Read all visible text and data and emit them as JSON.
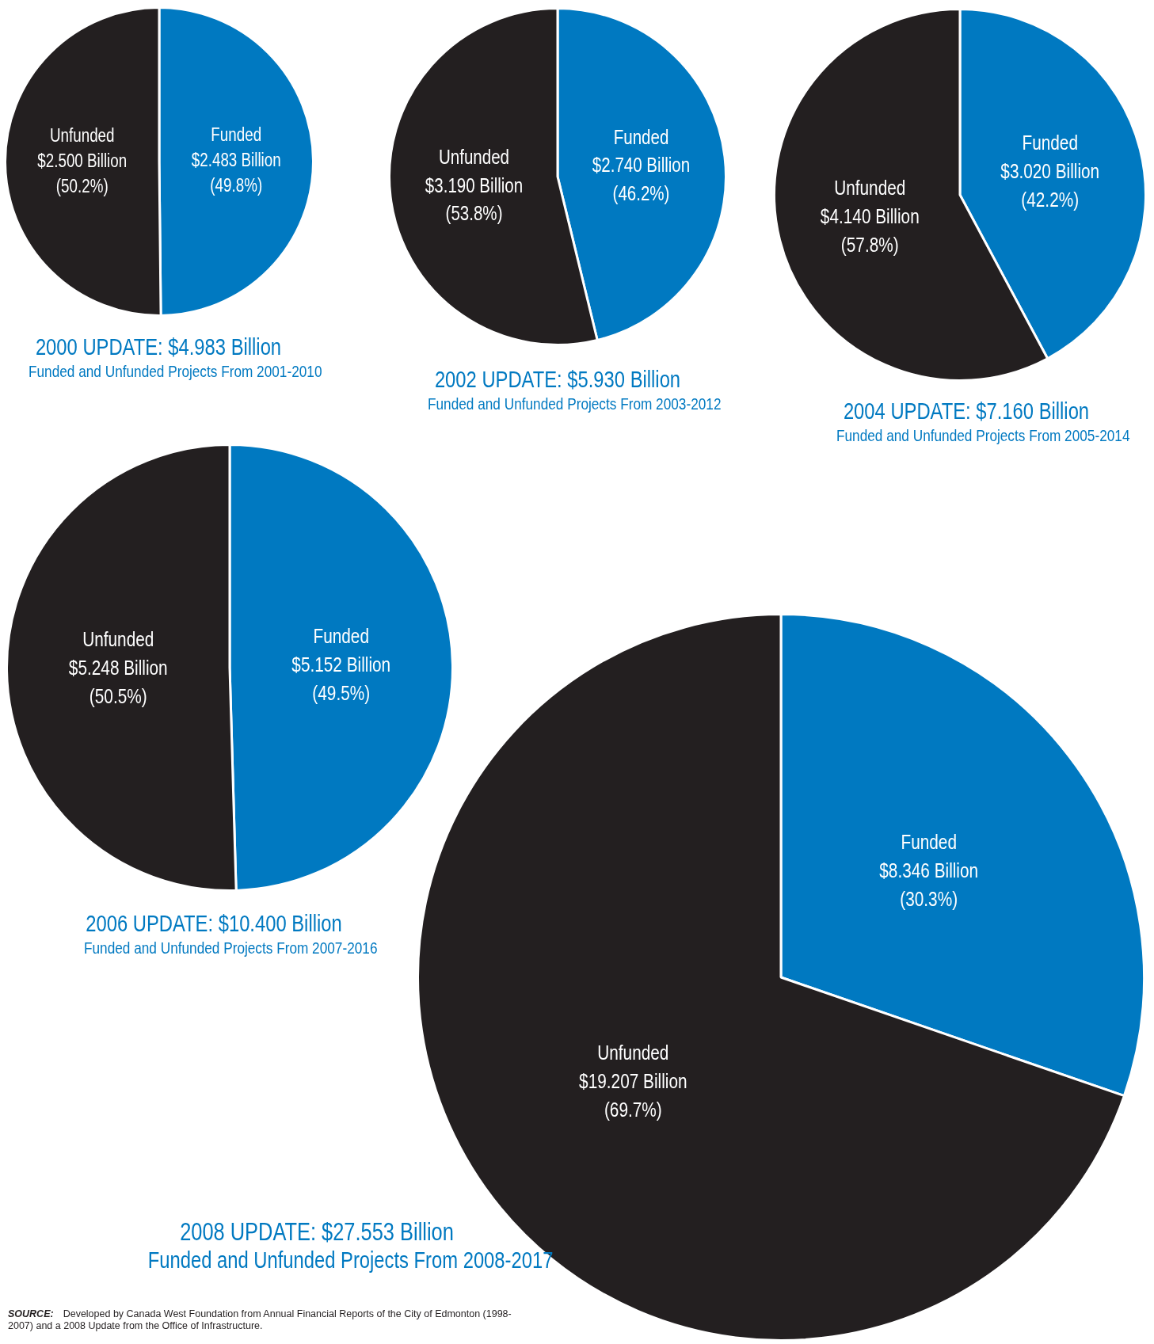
{
  "chart_data": [
    {
      "type": "pie",
      "title": "2000 UPDATE:  $4.983 Billion",
      "subtitle": "Funded and Unfunded Projects From 2001-2010",
      "categories": [
        "Funded",
        "Unfunded"
      ],
      "values": [
        2.483,
        2.5
      ],
      "colors": [
        "#0079c1",
        "#231f20"
      ],
      "value_labels": [
        "$2.483 Billion (49.8%)",
        "$2.500 Billion (50.2%)"
      ],
      "legend": false
    },
    {
      "type": "pie",
      "title": "2002 UPDATE:  $5.930 Billion",
      "subtitle": "Funded and Unfunded Projects From 2003-2012",
      "categories": [
        "Funded",
        "Unfunded"
      ],
      "values": [
        2.74,
        3.19
      ],
      "colors": [
        "#0079c1",
        "#231f20"
      ],
      "value_labels": [
        "$2.740 Billion (46.2%)",
        "$3.190 Billion (53.8%)"
      ],
      "legend": false
    },
    {
      "type": "pie",
      "title": "2004 UPDATE:  $7.160 Billion",
      "subtitle": "Funded and Unfunded Projects From 2005-2014",
      "categories": [
        "Funded",
        "Unfunded"
      ],
      "values": [
        3.02,
        4.14
      ],
      "colors": [
        "#0079c1",
        "#231f20"
      ],
      "value_labels": [
        "$3.020 Billion (42.2%)",
        "$4.140 Billion (57.8%)"
      ],
      "legend": false
    },
    {
      "type": "pie",
      "title": "2006 UPDATE:  $10.400 Billion",
      "subtitle": "Funded and Unfunded Projects From 2007-2016",
      "categories": [
        "Funded",
        "Unfunded"
      ],
      "values": [
        5.152,
        5.248
      ],
      "colors": [
        "#0079c1",
        "#231f20"
      ],
      "value_labels": [
        "$5.152 Billion (49.5%)",
        "$5.248 Billion (50.5%)"
      ],
      "legend": false
    },
    {
      "type": "pie",
      "title": "2008 UPDATE:  $27.553 Billion",
      "subtitle": "Funded and Unfunded Projects From 2008-2017",
      "categories": [
        "Funded",
        "Unfunded"
      ],
      "values": [
        8.346,
        19.207
      ],
      "colors": [
        "#0079c1",
        "#231f20"
      ],
      "value_labels": [
        "$8.346 Billion (30.3%)",
        "$19.207 Billion (69.7%)"
      ],
      "legend": false,
      "annotations": [
        "SOURCE: Developed by Canada West Foundation from Annual Financial Reports of the City of Edmonton (1998-2007) and a 2008 Update from the Office of Infrastructure."
      ]
    }
  ]
}
